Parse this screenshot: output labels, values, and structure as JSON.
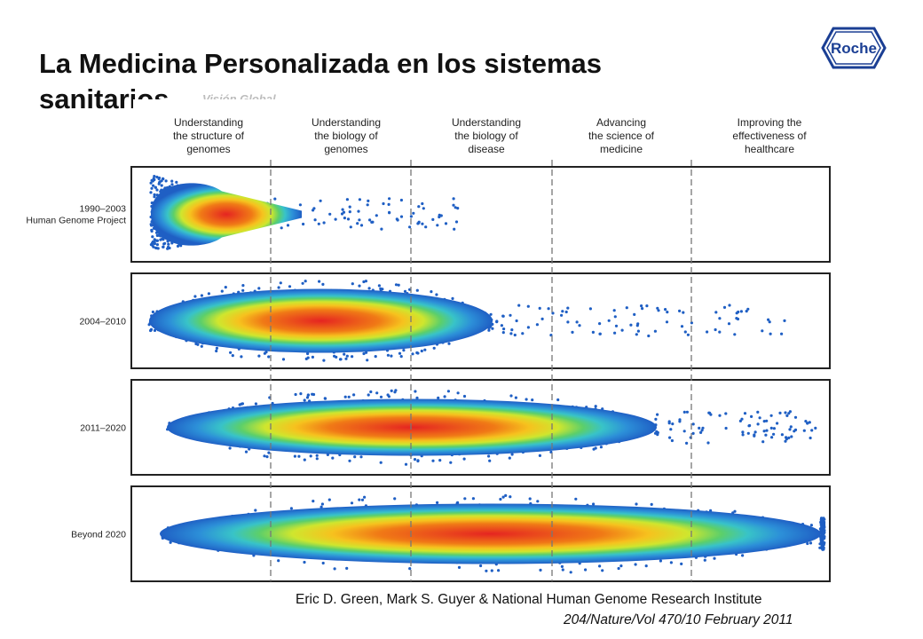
{
  "slide": {
    "title": "La Medicina Personalizada en los sistemas sanitarios",
    "subtitle": "Visión Global",
    "logo_text": "Roche"
  },
  "figure": {
    "columns": [
      [
        "Understanding",
        "the structure of",
        "genomes"
      ],
      [
        "Understanding",
        "the biology of",
        "genomes"
      ],
      [
        "Understanding",
        "the biology of",
        "disease"
      ],
      [
        "Advancing",
        "the science of",
        "medicine"
      ],
      [
        "Improving the",
        "effectiveness of",
        "healthcare"
      ]
    ],
    "rows": [
      {
        "label": [
          "1990–2003",
          "Human Genome Project"
        ]
      },
      {
        "label": [
          "2004–2010"
        ]
      },
      {
        "label": [
          "2011–2020"
        ]
      },
      {
        "label": [
          "Beyond 2020"
        ]
      }
    ],
    "heat_colors": [
      "#1f5fc4",
      "#2c8fd8",
      "#38c3c8",
      "#5ccf6a",
      "#cfe62e",
      "#f6c21e",
      "#f07a16",
      "#e52421"
    ]
  },
  "caption": {
    "authors": "Eric D. Green, Mark S. Guyer & National Human Genome Research Institute",
    "reference": "204/Nature/Vol 470/10 February 2011"
  }
}
